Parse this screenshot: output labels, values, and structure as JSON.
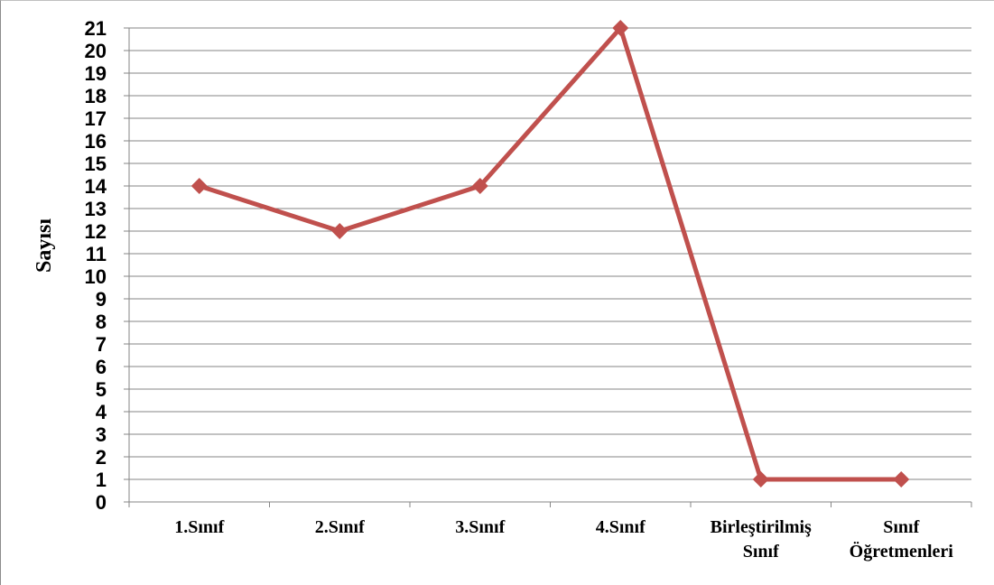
{
  "chart_data": {
    "type": "line",
    "title": "",
    "xlabel": "",
    "ylabel": "Sayısı",
    "ylim": [
      0,
      21
    ],
    "yticks": [
      0,
      1,
      2,
      3,
      4,
      5,
      6,
      7,
      8,
      9,
      10,
      11,
      12,
      13,
      14,
      15,
      16,
      17,
      18,
      19,
      20,
      21
    ],
    "grid": true,
    "legend": "none",
    "categories": [
      [
        "1.Sınıf"
      ],
      [
        "2.Sınıf"
      ],
      [
        "3.Sınıf"
      ],
      [
        "4.Sınıf"
      ],
      [
        "Birleştirilmiş",
        "Sınıf"
      ],
      [
        "Sınıf",
        "Öğretmenleri"
      ]
    ],
    "series": [
      {
        "values": [
          14,
          12,
          14,
          21,
          1,
          1
        ],
        "color": "#c0504d",
        "marker": "diamond"
      }
    ]
  }
}
